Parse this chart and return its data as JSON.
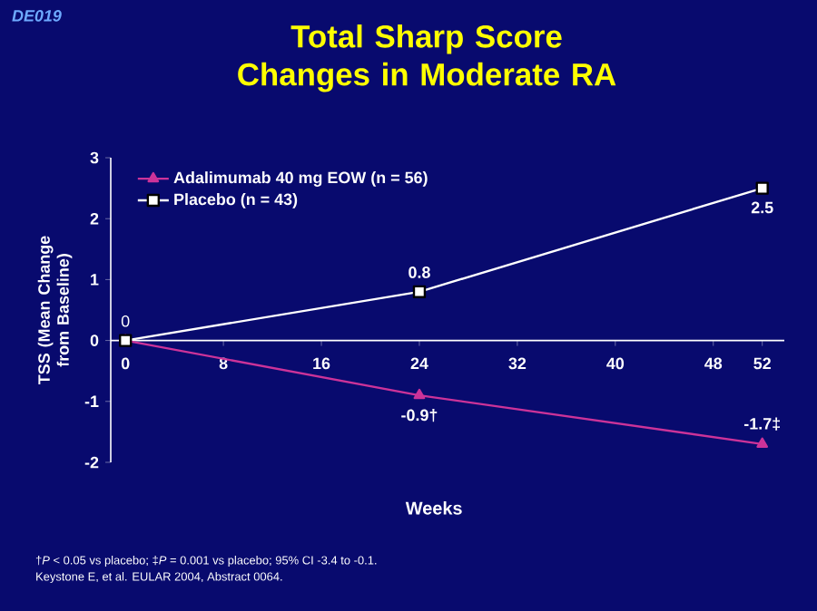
{
  "chart_data": {
    "type": "line",
    "title": "Total Sharp Score Changes in Moderate RA",
    "xlabel": "Weeks",
    "ylabel": "TSS (Mean Change from Baseline)",
    "x": [
      0,
      24,
      52
    ],
    "series": [
      {
        "name": "Adalimumab 40 mg EOW (n = 56)",
        "color": "#cc3399",
        "marker": "triangle",
        "values": [
          0,
          -0.9,
          -1.7
        ],
        "value_labels": [
          null,
          "-0.9†",
          "-1.7‡"
        ]
      },
      {
        "name": "Placebo (n = 43)",
        "color": "#ffffff",
        "marker": "square",
        "values": [
          0,
          0.8,
          2.5
        ],
        "value_labels": [
          "0",
          "0.8",
          "2.5"
        ]
      }
    ],
    "xlim": [
      -1.2,
      53.8
    ],
    "ylim": [
      -2,
      3
    ],
    "xticks": [
      0,
      8,
      16,
      24,
      32,
      40,
      48,
      52
    ],
    "yticks": [
      -2,
      -1,
      0,
      1,
      2,
      3
    ],
    "legend": "top left",
    "grid": false,
    "line_style": "solid",
    "annotations": [
      "DE019",
      "†*P* < 0.05 vs placebo; ‡*P* = 0.001 vs placebo; 95% CI -3.4 to -0.1.",
      "Keystone E, et al. EULAR 2004, Abstract 0064."
    ]
  }
}
